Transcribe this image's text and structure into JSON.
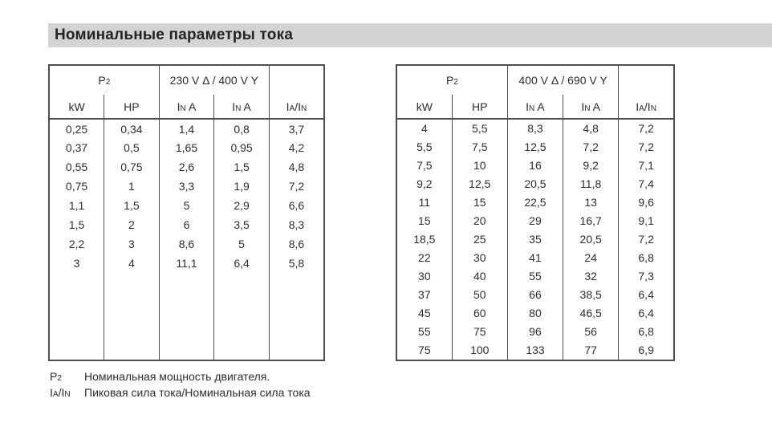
{
  "title": "Номинальные параметры тока",
  "colors": {
    "header_bar_bg": "#d3d3d3",
    "table_border": "#4d4d4d",
    "text": "#2d2d2d"
  },
  "tables": [
    {
      "p2_label": "P2",
      "voltage_label": "230 V Δ / 400 V Y",
      "columns": [
        "kW",
        "HP",
        "IN A",
        "IN A",
        "IA/IN"
      ],
      "rows": [
        [
          "0,25",
          "0,34",
          "1,4",
          "0,8",
          "3,7"
        ],
        [
          "0,37",
          "0,5",
          "1,65",
          "0,95",
          "4,2"
        ],
        [
          "0,55",
          "0,75",
          "2,6",
          "1,5",
          "4,8"
        ],
        [
          "0,75",
          "1",
          "3,3",
          "1,9",
          "7,2"
        ],
        [
          "1,1",
          "1,5",
          "5",
          "2,9",
          "6,6"
        ],
        [
          "1,5",
          "2",
          "6",
          "3,5",
          "8,3"
        ],
        [
          "2,2",
          "3",
          "8,6",
          "5",
          "8,6"
        ],
        [
          "3",
          "4",
          "11,1",
          "6,4",
          "5,8"
        ]
      ]
    },
    {
      "p2_label": "P2",
      "voltage_label": "400 V Δ / 690 V Y",
      "columns": [
        "kW",
        "HP",
        "IN A",
        "IN A",
        "IA/IN"
      ],
      "rows": [
        [
          "4",
          "5,5",
          "8,3",
          "4,8",
          "7,2"
        ],
        [
          "5,5",
          "7,5",
          "12,5",
          "7,2",
          "7,2"
        ],
        [
          "7,5",
          "10",
          "16",
          "9,2",
          "7,1"
        ],
        [
          "9,2",
          "12,5",
          "20,5",
          "11,8",
          "7,4"
        ],
        [
          "11",
          "15",
          "22,5",
          "13",
          "9,6"
        ],
        [
          "15",
          "20",
          "29",
          "16,7",
          "9,1"
        ],
        [
          "18,5",
          "25",
          "35",
          "20,5",
          "7,2"
        ],
        [
          "22",
          "30",
          "41",
          "24",
          "6,8"
        ],
        [
          "30",
          "40",
          "55",
          "32",
          "7,3"
        ],
        [
          "37",
          "50",
          "66",
          "38,5",
          "6,4"
        ],
        [
          "45",
          "60",
          "80",
          "46,5",
          "6,4"
        ],
        [
          "55",
          "75",
          "96",
          "56",
          "6,8"
        ],
        [
          "75",
          "100",
          "133",
          "77",
          "6,9"
        ]
      ]
    }
  ],
  "footnotes": [
    {
      "term": "P2",
      "definition": "Номинальная мощность двигателя."
    },
    {
      "term": "IA/IN",
      "definition": "Пиковая сила тока/Номинальная сила тока"
    }
  ]
}
